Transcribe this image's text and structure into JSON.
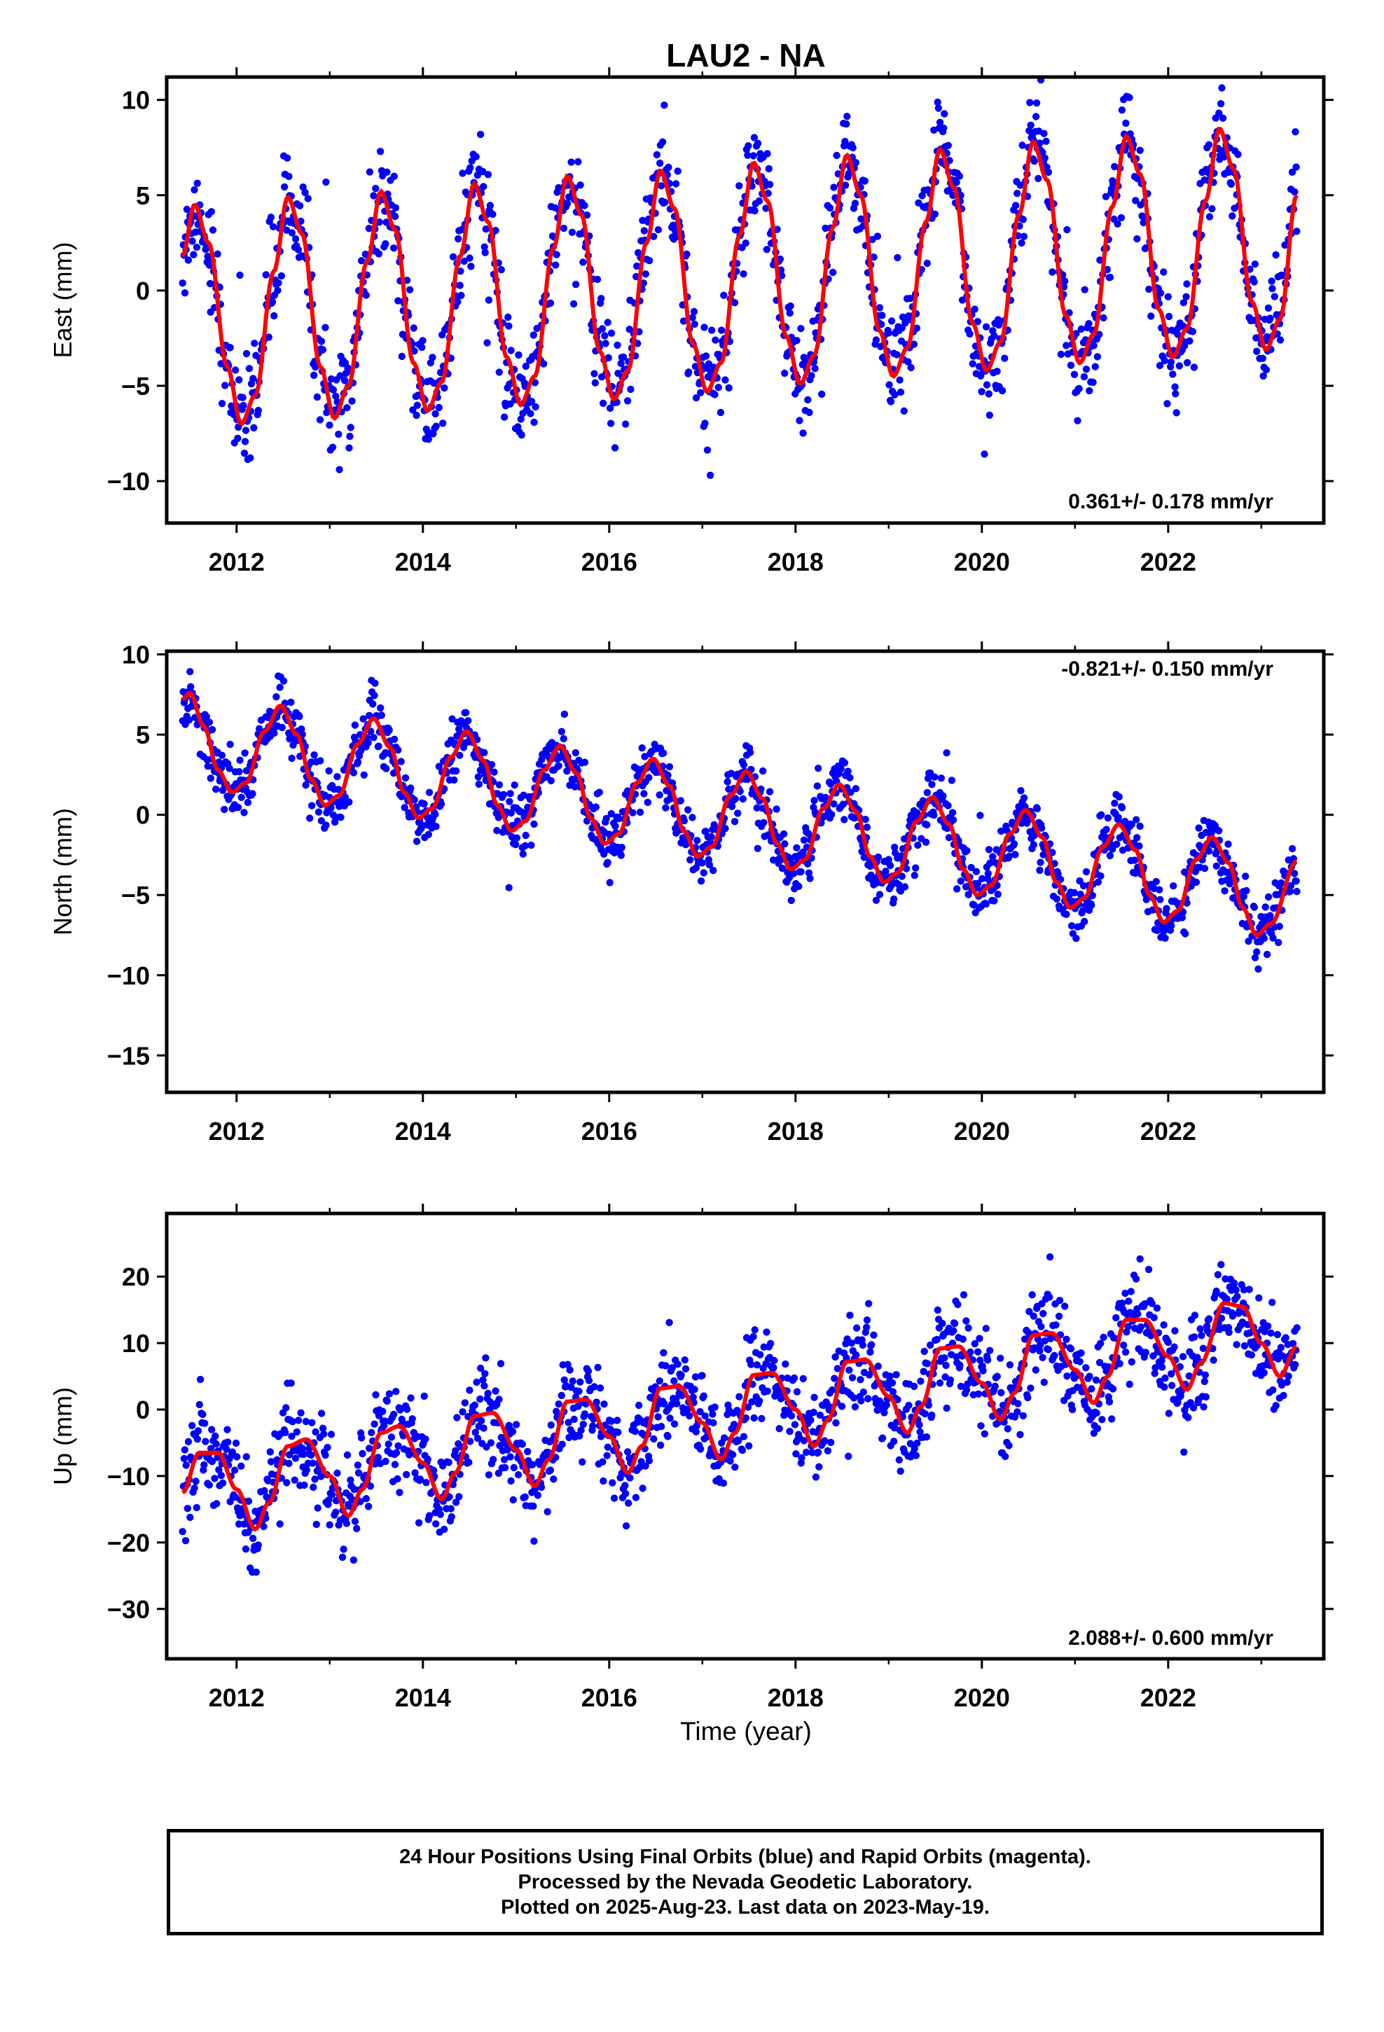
{
  "title": "LAU2 - NA",
  "xlabel": "Time (year)",
  "footer": {
    "line1": "24 Hour Positions Using Final Orbits (blue) and Rapid Orbits (magenta).",
    "line2": "Processed by the Nevada Geodetic Laboratory.",
    "line3": "Plotted on 2025-Aug-23. Last data on 2023-May-19."
  },
  "colors": {
    "points": "#0000ff",
    "fit": "#ff0000",
    "axis": "#000000"
  },
  "chart_data": [
    {
      "type": "scatter",
      "ylabel": "East (mm)",
      "xlim": [
        2011.25,
        2023.67
      ],
      "ylim": [
        -12.2,
        11.2
      ],
      "yticks": [
        10,
        5,
        0,
        -5,
        -10
      ],
      "xticks": [
        2012,
        2014,
        2016,
        2018,
        2020,
        2022
      ],
      "rate_label": "0.361+/- 0.178 mm/yr",
      "data_range": [
        2011.42,
        2023.38
      ],
      "series": [
        {
          "fit_points": [
            [
              2011.42,
              1.8
            ],
            [
              2011.55,
              4.5
            ],
            [
              2011.7,
              2.5
            ],
            [
              2011.9,
              -4
            ],
            [
              2012.05,
              -7
            ],
            [
              2012.2,
              -5.5
            ],
            [
              2012.4,
              1
            ],
            [
              2012.55,
              4.9
            ],
            [
              2012.7,
              3
            ],
            [
              2012.9,
              -4
            ],
            [
              2013.05,
              -6.7
            ],
            [
              2013.2,
              -5
            ],
            [
              2013.4,
              1.5
            ],
            [
              2013.55,
              5.2
            ],
            [
              2013.7,
              3.2
            ],
            [
              2013.9,
              -3.8
            ],
            [
              2014.05,
              -6.3
            ],
            [
              2014.2,
              -4.8
            ],
            [
              2014.4,
              1.8
            ],
            [
              2014.55,
              5.6
            ],
            [
              2014.7,
              3.6
            ],
            [
              2014.9,
              -3.5
            ],
            [
              2015.05,
              -6
            ],
            [
              2015.2,
              -4.5
            ],
            [
              2015.4,
              2.2
            ],
            [
              2015.55,
              6
            ],
            [
              2015.7,
              4
            ],
            [
              2015.9,
              -3.2
            ],
            [
              2016.05,
              -5.7
            ],
            [
              2016.2,
              -4.2
            ],
            [
              2016.4,
              2.5
            ],
            [
              2016.55,
              6.3
            ],
            [
              2016.7,
              4.3
            ],
            [
              2016.9,
              -2.8
            ],
            [
              2017.05,
              -5.3
            ],
            [
              2017.2,
              -3.8
            ],
            [
              2017.4,
              2.9
            ],
            [
              2017.55,
              6.7
            ],
            [
              2017.7,
              4.7
            ],
            [
              2017.9,
              -2.4
            ],
            [
              2018.05,
              -4.9
            ],
            [
              2018.2,
              -3.4
            ],
            [
              2018.4,
              3.3
            ],
            [
              2018.55,
              7.1
            ],
            [
              2018.7,
              5
            ],
            [
              2018.9,
              -2.1
            ],
            [
              2019.05,
              -4.5
            ],
            [
              2019.2,
              -3
            ],
            [
              2019.4,
              3.6
            ],
            [
              2019.55,
              7.4
            ],
            [
              2019.7,
              5.4
            ],
            [
              2019.9,
              -1.7
            ],
            [
              2020.05,
              -4.2
            ],
            [
              2020.2,
              -2.7
            ],
            [
              2020.4,
              4
            ],
            [
              2020.55,
              7.8
            ],
            [
              2020.7,
              5.8
            ],
            [
              2020.9,
              -1.3
            ],
            [
              2021.05,
              -3.8
            ],
            [
              2021.2,
              -2.3
            ],
            [
              2021.4,
              4.4
            ],
            [
              2021.55,
              8.1
            ],
            [
              2021.7,
              6.1
            ],
            [
              2021.9,
              -1
            ],
            [
              2022.05,
              -3.5
            ],
            [
              2022.2,
              -2
            ],
            [
              2022.4,
              4.7
            ],
            [
              2022.55,
              8.5
            ],
            [
              2022.7,
              6.4
            ],
            [
              2022.9,
              -0.6
            ],
            [
              2023.05,
              -3.1
            ],
            [
              2023.2,
              -1.5
            ],
            [
              2023.38,
              5
            ]
          ],
          "noise_sd": 1.6
        }
      ]
    },
    {
      "type": "scatter",
      "ylabel": "North (mm)",
      "xlim": [
        2011.25,
        2023.67
      ],
      "ylim": [
        -17.3,
        10.2
      ],
      "yticks": [
        10,
        5,
        0,
        -5,
        -10,
        -15
      ],
      "xticks": [
        2012,
        2014,
        2016,
        2018,
        2020,
        2022
      ],
      "rate_label": "-0.821+/- 0.150 mm/yr",
      "data_range": [
        2011.42,
        2023.38
      ],
      "series": [
        {
          "fit_points": [
            [
              2011.42,
              7.2
            ],
            [
              2011.5,
              7.6
            ],
            [
              2011.65,
              5.5
            ],
            [
              2011.8,
              2.8
            ],
            [
              2011.95,
              1.4
            ],
            [
              2012.1,
              2
            ],
            [
              2012.3,
              5.2
            ],
            [
              2012.47,
              6.8
            ],
            [
              2012.65,
              5
            ],
            [
              2012.8,
              2.2
            ],
            [
              2012.95,
              0.6
            ],
            [
              2013.1,
              1.2
            ],
            [
              2013.3,
              4.4
            ],
            [
              2013.47,
              6
            ],
            [
              2013.65,
              4.2
            ],
            [
              2013.8,
              1.4
            ],
            [
              2013.95,
              -0.2
            ],
            [
              2014.1,
              0.4
            ],
            [
              2014.3,
              3.6
            ],
            [
              2014.47,
              5.2
            ],
            [
              2014.65,
              3.4
            ],
            [
              2014.8,
              0.6
            ],
            [
              2014.95,
              -1
            ],
            [
              2015.1,
              -0.4
            ],
            [
              2015.3,
              2.8
            ],
            [
              2015.47,
              4.3
            ],
            [
              2015.65,
              2.6
            ],
            [
              2015.8,
              -0.2
            ],
            [
              2015.95,
              -1.8
            ],
            [
              2016.1,
              -1.2
            ],
            [
              2016.3,
              2
            ],
            [
              2016.47,
              3.5
            ],
            [
              2016.65,
              1.8
            ],
            [
              2016.8,
              -1
            ],
            [
              2016.95,
              -2.6
            ],
            [
              2017.1,
              -2
            ],
            [
              2017.3,
              1.2
            ],
            [
              2017.47,
              2.7
            ],
            [
              2017.65,
              1
            ],
            [
              2017.8,
              -1.8
            ],
            [
              2017.95,
              -3.4
            ],
            [
              2018.1,
              -2.8
            ],
            [
              2018.3,
              0.4
            ],
            [
              2018.47,
              1.9
            ],
            [
              2018.65,
              0.2
            ],
            [
              2018.8,
              -2.6
            ],
            [
              2018.95,
              -4.2
            ],
            [
              2019.1,
              -3.6
            ],
            [
              2019.3,
              -0.4
            ],
            [
              2019.47,
              1.1
            ],
            [
              2019.65,
              -0.6
            ],
            [
              2019.8,
              -3.4
            ],
            [
              2019.95,
              -5
            ],
            [
              2020.1,
              -4.4
            ],
            [
              2020.3,
              -1.2
            ],
            [
              2020.47,
              0.3
            ],
            [
              2020.65,
              -1.4
            ],
            [
              2020.8,
              -4.2
            ],
            [
              2020.95,
              -5.8
            ],
            [
              2021.1,
              -5.2
            ],
            [
              2021.3,
              -2
            ],
            [
              2021.47,
              -0.6
            ],
            [
              2021.65,
              -2.2
            ],
            [
              2021.8,
              -5
            ],
            [
              2021.95,
              -6.7
            ],
            [
              2022.1,
              -6
            ],
            [
              2022.3,
              -2.8
            ],
            [
              2022.47,
              -1.4
            ],
            [
              2022.65,
              -3
            ],
            [
              2022.8,
              -5.8
            ],
            [
              2022.95,
              -7.5
            ],
            [
              2023.1,
              -6.8
            ],
            [
              2023.38,
              -2.9
            ]
          ],
          "noise_sd": 1.1
        }
      ]
    },
    {
      "type": "scatter",
      "ylabel": "Up (mm)",
      "xlim": [
        2011.25,
        2023.67
      ],
      "ylim": [
        -37.5,
        29.5
      ],
      "yticks": [
        20,
        10,
        0,
        -10,
        -20,
        -30
      ],
      "xticks": [
        2012,
        2014,
        2016,
        2018,
        2020,
        2022
      ],
      "rate_label": "2.088+/- 0.600 mm/yr",
      "data_range": [
        2011.42,
        2023.38
      ],
      "series": [
        {
          "fit_points": [
            [
              2011.42,
              -12.5
            ],
            [
              2011.6,
              -6.5
            ],
            [
              2011.8,
              -6.5
            ],
            [
              2012,
              -12
            ],
            [
              2012.2,
              -18
            ],
            [
              2012.35,
              -14
            ],
            [
              2012.55,
              -5.5
            ],
            [
              2012.75,
              -4.5
            ],
            [
              2013,
              -10
            ],
            [
              2013.2,
              -16
            ],
            [
              2013.35,
              -12
            ],
            [
              2013.55,
              -3.5
            ],
            [
              2013.75,
              -2.5
            ],
            [
              2014,
              -8
            ],
            [
              2014.2,
              -13.5
            ],
            [
              2014.35,
              -9.5
            ],
            [
              2014.55,
              -1
            ],
            [
              2014.75,
              -0.5
            ],
            [
              2015,
              -6
            ],
            [
              2015.2,
              -11.5
            ],
            [
              2015.35,
              -7.5
            ],
            [
              2015.55,
              1.2
            ],
            [
              2015.75,
              1.5
            ],
            [
              2016,
              -4
            ],
            [
              2016.2,
              -9.5
            ],
            [
              2016.35,
              -5.5
            ],
            [
              2016.55,
              3.2
            ],
            [
              2016.75,
              3.5
            ],
            [
              2017,
              -2
            ],
            [
              2017.2,
              -7.5
            ],
            [
              2017.35,
              -3.5
            ],
            [
              2017.55,
              5.2
            ],
            [
              2017.75,
              5.5
            ],
            [
              2018,
              0
            ],
            [
              2018.2,
              -5.5
            ],
            [
              2018.35,
              -1.5
            ],
            [
              2018.55,
              7.2
            ],
            [
              2018.75,
              7.5
            ],
            [
              2019,
              2
            ],
            [
              2019.2,
              -3.5
            ],
            [
              2019.35,
              0.5
            ],
            [
              2019.55,
              9.2
            ],
            [
              2019.75,
              9.5
            ],
            [
              2020,
              4
            ],
            [
              2020.2,
              -1.5
            ],
            [
              2020.35,
              2.5
            ],
            [
              2020.55,
              11.2
            ],
            [
              2020.75,
              11.5
            ],
            [
              2021,
              6
            ],
            [
              2021.2,
              1
            ],
            [
              2021.35,
              5
            ],
            [
              2021.55,
              13.5
            ],
            [
              2021.75,
              13.5
            ],
            [
              2022,
              8
            ],
            [
              2022.2,
              3
            ],
            [
              2022.35,
              7
            ],
            [
              2022.6,
              16
            ],
            [
              2022.8,
              15.5
            ],
            [
              2023,
              10
            ],
            [
              2023.2,
              5
            ],
            [
              2023.38,
              9.5
            ]
          ],
          "noise_sd": 4.3
        }
      ]
    }
  ]
}
